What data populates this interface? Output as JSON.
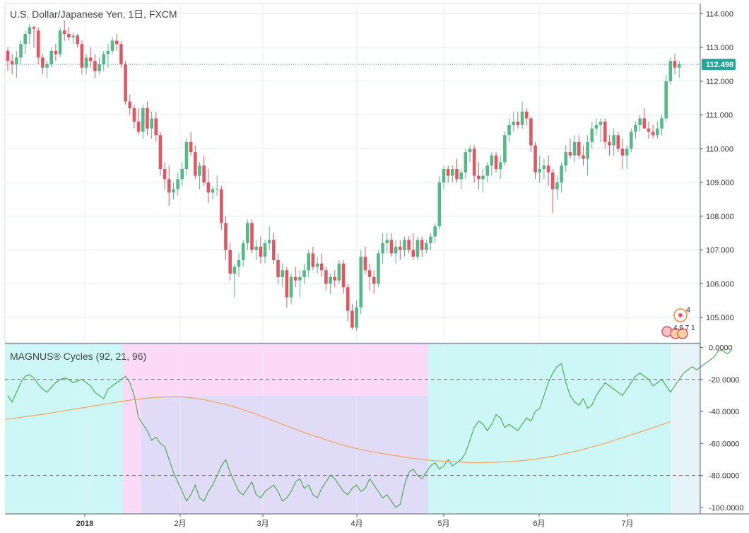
{
  "colors": {
    "up": "#26a69a",
    "up_fill": "#53b987",
    "down": "#e25563",
    "grid": "#e8ecef",
    "border": "#55606a",
    "last_price": "#26a69a",
    "cycle_line": "#4caf50",
    "smooth_line": "#f4a460",
    "zone_cyan": "#cdf7f7",
    "zone_pink": "#fbd9f7",
    "zone_lavender": "#e0dbf6",
    "zone_future": "#e6f3f9"
  },
  "chart_data": [
    {
      "type": "candlestick",
      "title": "U.S. Dollar/Japanese Yen, 1日, FXCM",
      "ylim": [
        104.25,
        114.3
      ],
      "yticks": [
        "114.000",
        "113.000",
        "112.000",
        "111.000",
        "110.000",
        "109.000",
        "108.000",
        "107.000",
        "106.000",
        "105.000"
      ],
      "last_price": 112.498,
      "last_price_label": "112.498",
      "x_labels": [
        "2018",
        "2月",
        "3月",
        "4月",
        "5月",
        "6月",
        "7月"
      ],
      "candles": [
        [
          112.9,
          113.0,
          112.3,
          112.6
        ],
        [
          112.6,
          112.8,
          112.2,
          112.5
        ],
        [
          112.5,
          112.9,
          112.1,
          112.7
        ],
        [
          112.7,
          113.2,
          112.5,
          113.1
        ],
        [
          113.1,
          113.5,
          112.8,
          113.4
        ],
        [
          113.4,
          113.7,
          113.1,
          113.6
        ],
        [
          113.6,
          113.65,
          113.0,
          113.55
        ],
        [
          113.5,
          113.6,
          112.5,
          112.7
        ],
        [
          112.7,
          112.8,
          112.2,
          112.4
        ],
        [
          112.4,
          112.6,
          112.1,
          112.5
        ],
        [
          112.5,
          113.0,
          112.4,
          112.9
        ],
        [
          112.9,
          113.1,
          112.6,
          112.8
        ],
        [
          112.8,
          113.6,
          112.7,
          113.5
        ],
        [
          113.5,
          113.8,
          113.2,
          113.4
        ],
        [
          113.4,
          113.6,
          113.2,
          113.3
        ],
        [
          113.3,
          113.45,
          113.1,
          113.35
        ],
        [
          113.35,
          113.4,
          113.0,
          113.1
        ],
        [
          113.1,
          113.2,
          112.2,
          112.4
        ],
        [
          112.4,
          112.8,
          112.2,
          112.7
        ],
        [
          112.7,
          113.0,
          112.4,
          112.6
        ],
        [
          112.6,
          112.8,
          112.1,
          112.3
        ],
        [
          112.3,
          112.7,
          112.2,
          112.5
        ],
        [
          112.5,
          112.9,
          112.3,
          112.8
        ],
        [
          112.8,
          113.1,
          112.4,
          112.9
        ],
        [
          112.9,
          113.3,
          112.8,
          113.2
        ],
        [
          113.2,
          113.4,
          112.9,
          113.1
        ],
        [
          113.1,
          113.2,
          112.4,
          112.5
        ],
        [
          112.5,
          112.6,
          111.3,
          111.4
        ],
        [
          111.4,
          111.6,
          111.0,
          111.2
        ],
        [
          111.2,
          111.3,
          110.6,
          110.8
        ],
        [
          110.8,
          111.2,
          110.4,
          110.5
        ],
        [
          110.5,
          111.3,
          110.3,
          111.2
        ],
        [
          111.2,
          111.4,
          110.4,
          110.6
        ],
        [
          110.6,
          111.1,
          110.3,
          110.9
        ],
        [
          110.9,
          111.1,
          110.2,
          110.4
        ],
        [
          110.4,
          110.5,
          109.2,
          109.4
        ],
        [
          109.4,
          109.6,
          108.8,
          109.1
        ],
        [
          109.1,
          109.5,
          108.3,
          108.7
        ],
        [
          108.7,
          109.0,
          108.5,
          108.8
        ],
        [
          108.8,
          109.3,
          108.6,
          109.1
        ],
        [
          109.1,
          109.6,
          108.9,
          109.4
        ],
        [
          109.4,
          110.3,
          109.2,
          110.2
        ],
        [
          110.2,
          110.5,
          109.8,
          109.9
        ],
        [
          109.9,
          110.1,
          109.1,
          109.2
        ],
        [
          109.2,
          109.6,
          108.8,
          109.5
        ],
        [
          109.5,
          109.8,
          108.9,
          109.0
        ],
        [
          109.0,
          109.4,
          108.4,
          108.7
        ],
        [
          108.7,
          108.9,
          108.5,
          108.8
        ],
        [
          108.8,
          109.2,
          108.6,
          108.8
        ],
        [
          108.8,
          108.9,
          107.6,
          107.8
        ],
        [
          107.8,
          108.0,
          106.7,
          107.0
        ],
        [
          107.0,
          107.2,
          106.1,
          106.3
        ],
        [
          106.3,
          106.6,
          105.6,
          106.5
        ],
        [
          106.5,
          106.9,
          106.2,
          106.7
        ],
        [
          106.7,
          107.3,
          106.5,
          107.2
        ],
        [
          107.2,
          107.9,
          107.0,
          107.8
        ],
        [
          107.8,
          107.9,
          106.9,
          107.0
        ],
        [
          107.0,
          107.3,
          106.7,
          107.1
        ],
        [
          107.1,
          107.4,
          106.6,
          106.8
        ],
        [
          106.8,
          107.3,
          106.6,
          107.2
        ],
        [
          107.2,
          107.7,
          107.0,
          107.3
        ],
        [
          107.3,
          107.5,
          106.6,
          106.7
        ],
        [
          106.7,
          106.9,
          106.0,
          106.2
        ],
        [
          106.2,
          106.6,
          105.9,
          106.4
        ],
        [
          106.4,
          106.5,
          105.3,
          105.6
        ],
        [
          105.6,
          106.3,
          105.4,
          106.2
        ],
        [
          106.2,
          106.5,
          105.9,
          106.1
        ],
        [
          106.1,
          106.4,
          105.6,
          106.2
        ],
        [
          106.2,
          106.6,
          106.0,
          106.4
        ],
        [
          106.4,
          107.0,
          106.2,
          106.9
        ],
        [
          106.9,
          107.1,
          106.4,
          106.5
        ],
        [
          106.5,
          106.8,
          106.3,
          106.6
        ],
        [
          106.6,
          106.9,
          106.2,
          106.4
        ],
        [
          106.4,
          106.5,
          105.8,
          106.0
        ],
        [
          106.0,
          106.3,
          105.7,
          106.2
        ],
        [
          106.2,
          106.4,
          105.9,
          106.1
        ],
        [
          106.1,
          106.7,
          106.0,
          106.6
        ],
        [
          106.6,
          106.7,
          105.7,
          105.9
        ],
        [
          105.9,
          106.0,
          104.9,
          105.2
        ],
        [
          105.2,
          105.4,
          104.65,
          104.7
        ],
        [
          104.7,
          105.5,
          104.6,
          105.3
        ],
        [
          105.3,
          107.0,
          105.1,
          106.8
        ],
        [
          106.8,
          107.1,
          106.3,
          106.4
        ],
        [
          106.4,
          106.6,
          105.8,
          106.2
        ],
        [
          106.2,
          106.4,
          105.7,
          106.0
        ],
        [
          106.0,
          107.0,
          105.9,
          106.9
        ],
        [
          106.9,
          107.5,
          106.6,
          107.2
        ],
        [
          107.2,
          107.5,
          106.9,
          107.3
        ],
        [
          107.3,
          107.5,
          106.8,
          106.9
        ],
        [
          106.9,
          107.3,
          106.6,
          107.1
        ],
        [
          107.1,
          107.3,
          106.7,
          107.0
        ],
        [
          107.0,
          107.4,
          106.8,
          107.3
        ],
        [
          107.3,
          107.4,
          106.9,
          107.0
        ],
        [
          107.0,
          107.5,
          106.7,
          106.8
        ],
        [
          106.8,
          107.4,
          106.7,
          107.3
        ],
        [
          107.3,
          107.4,
          106.8,
          107.0
        ],
        [
          107.0,
          107.3,
          106.9,
          107.2
        ],
        [
          107.2,
          107.5,
          107.0,
          107.4
        ],
        [
          107.4,
          107.8,
          107.2,
          107.7
        ],
        [
          107.7,
          109.2,
          107.6,
          109.0
        ],
        [
          109.0,
          109.5,
          108.8,
          109.4
        ],
        [
          109.4,
          109.5,
          109.0,
          109.2
        ],
        [
          109.2,
          109.5,
          109.0,
          109.4
        ],
        [
          109.4,
          109.7,
          109.0,
          109.1
        ],
        [
          109.1,
          109.4,
          108.8,
          109.3
        ],
        [
          109.3,
          110.0,
          109.1,
          109.9
        ],
        [
          109.9,
          110.1,
          109.6,
          110.0
        ],
        [
          110.0,
          110.1,
          109.0,
          109.2
        ],
        [
          109.2,
          109.6,
          108.8,
          109.1
        ],
        [
          109.1,
          109.4,
          108.7,
          109.2
        ],
        [
          109.2,
          109.6,
          109.0,
          109.5
        ],
        [
          109.5,
          109.9,
          109.2,
          109.8
        ],
        [
          109.8,
          109.9,
          109.3,
          109.4
        ],
        [
          109.4,
          109.8,
          109.1,
          109.6
        ],
        [
          109.6,
          110.5,
          109.5,
          110.4
        ],
        [
          110.4,
          110.9,
          110.2,
          110.7
        ],
        [
          110.7,
          111.1,
          110.5,
          110.8
        ],
        [
          110.8,
          111.1,
          110.6,
          110.7
        ],
        [
          110.7,
          111.4,
          110.6,
          111.1
        ],
        [
          111.1,
          111.2,
          110.7,
          110.9
        ],
        [
          110.9,
          110.95,
          109.9,
          110.1
        ],
        [
          110.1,
          110.2,
          109.1,
          109.3
        ],
        [
          109.3,
          109.8,
          109.0,
          109.4
        ],
        [
          109.4,
          109.7,
          109.1,
          109.5
        ],
        [
          109.5,
          109.8,
          108.9,
          109.3
        ],
        [
          109.3,
          109.4,
          108.1,
          108.8
        ],
        [
          108.8,
          109.2,
          108.5,
          109.0
        ],
        [
          109.0,
          109.6,
          108.7,
          109.5
        ],
        [
          109.5,
          110.1,
          109.3,
          109.9
        ],
        [
          109.9,
          110.3,
          109.7,
          109.8
        ],
        [
          109.8,
          110.4,
          109.6,
          110.2
        ],
        [
          110.2,
          110.4,
          109.7,
          109.8
        ],
        [
          109.8,
          110.1,
          109.5,
          109.7
        ],
        [
          109.7,
          110.4,
          109.2,
          110.2
        ],
        [
          110.2,
          110.8,
          110.0,
          110.6
        ],
        [
          110.6,
          110.9,
          110.4,
          110.7
        ],
        [
          110.7,
          110.9,
          110.2,
          110.8
        ],
        [
          110.8,
          110.9,
          110.0,
          110.2
        ],
        [
          110.2,
          110.4,
          109.8,
          110.1
        ],
        [
          110.1,
          110.6,
          109.8,
          110.4
        ],
        [
          110.4,
          110.5,
          109.9,
          110.0
        ],
        [
          110.0,
          110.3,
          109.4,
          109.8
        ],
        [
          109.8,
          110.1,
          109.4,
          110.0
        ],
        [
          110.0,
          110.6,
          109.9,
          110.5
        ],
        [
          110.5,
          110.8,
          110.3,
          110.7
        ],
        [
          110.7,
          111.0,
          110.5,
          110.9
        ],
        [
          110.9,
          111.2,
          110.6,
          110.6
        ],
        [
          110.6,
          110.8,
          110.3,
          110.5
        ],
        [
          110.5,
          110.7,
          110.3,
          110.4
        ],
        [
          110.4,
          110.8,
          110.3,
          110.6
        ],
        [
          110.6,
          111.0,
          110.4,
          110.9
        ],
        [
          110.9,
          112.2,
          110.8,
          112.0
        ],
        [
          112.0,
          112.7,
          111.9,
          112.6
        ],
        [
          112.6,
          112.8,
          112.2,
          112.4
        ],
        [
          112.4,
          112.6,
          112.1,
          112.5
        ]
      ]
    },
    {
      "type": "line",
      "title": "MAGNUS® Cycles (92, 21, 96)",
      "ylim": [
        -104,
        2
      ],
      "yticks": [
        "0.0000",
        "-20.0000",
        "-40.0000",
        "-60.0000",
        "-80.0000",
        "-100.0000"
      ],
      "reference_lines": [
        -20,
        -80
      ],
      "cycle_values": [
        -30,
        -34,
        -28,
        -22,
        -18,
        -17,
        -19,
        -23,
        -26,
        -28,
        -25,
        -22,
        -20,
        -19,
        -20,
        -22,
        -21,
        -20,
        -22,
        -24,
        -28,
        -30,
        -32,
        -26,
        -24,
        -22,
        -20,
        -18,
        -22,
        -30,
        -44,
        -48,
        -52,
        -58,
        -56,
        -60,
        -62,
        -70,
        -78,
        -84,
        -90,
        -96,
        -92,
        -86,
        -94,
        -96,
        -90,
        -86,
        -80,
        -74,
        -70,
        -78,
        -84,
        -90,
        -92,
        -88,
        -84,
        -92,
        -94,
        -90,
        -88,
        -86,
        -90,
        -96,
        -94,
        -90,
        -84,
        -82,
        -88,
        -86,
        -92,
        -94,
        -88,
        -84,
        -80,
        -82,
        -86,
        -90,
        -92,
        -88,
        -86,
        -90,
        -88,
        -82,
        -86,
        -90,
        -94,
        -92,
        -96,
        -100,
        -98,
        -86,
        -78,
        -76,
        -80,
        -82,
        -78,
        -74,
        -72,
        -76,
        -74,
        -70,
        -74,
        -72,
        -70,
        -66,
        -58,
        -50,
        -46,
        -48,
        -52,
        -48,
        -42,
        -44,
        -50,
        -48,
        -50,
        -52,
        -48,
        -44,
        -46,
        -40,
        -38,
        -30,
        -22,
        -16,
        -12,
        -10,
        -22,
        -30,
        -34,
        -36,
        -32,
        -38,
        -36,
        -30,
        -26,
        -22,
        -24,
        -26,
        -28,
        -30,
        -26,
        -22,
        -18,
        -16,
        -18,
        -20,
        -24,
        -22,
        -20,
        -24,
        -28,
        -24,
        -20,
        -16,
        -14,
        -12,
        -14,
        -12,
        -10,
        -8,
        -6,
        -2,
        -2,
        -4,
        -2
      ],
      "smooth_values": [
        -45,
        -44.5,
        -44,
        -43.5,
        -43,
        -42.5,
        -42,
        -41.4,
        -40.8,
        -40.2,
        -39.6,
        -39,
        -38.4,
        -37.8,
        -37.2,
        -36.6,
        -36,
        -35.4,
        -34.8,
        -34.2,
        -33.6,
        -33,
        -32.6,
        -32.2,
        -31.8,
        -31.4,
        -31.2,
        -31,
        -30.9,
        -30.8,
        -30.9,
        -31.2,
        -31.6,
        -32.2,
        -32.8,
        -33.6,
        -34.4,
        -35.2,
        -36.2,
        -37.2,
        -38.4,
        -39.6,
        -40.8,
        -42.2,
        -43.6,
        -45,
        -46.4,
        -47.8,
        -49.2,
        -50.6,
        -52,
        -53.4,
        -54.6,
        -55.8,
        -57,
        -58.2,
        -59.4,
        -60.6,
        -61.6,
        -62.6,
        -63.4,
        -64.2,
        -65,
        -65.6,
        -66.2,
        -66.8,
        -67.4,
        -68,
        -68.6,
        -69.2,
        -69.6,
        -70,
        -70.4,
        -70.8,
        -71,
        -71.2,
        -71.4,
        -71.6,
        -71.8,
        -72,
        -72,
        -72,
        -71.9,
        -71.8,
        -71.6,
        -71.4,
        -71.2,
        -71,
        -70.6,
        -70.2,
        -69.8,
        -69.2,
        -68.6,
        -68,
        -67.2,
        -66.4,
        -65.6,
        -64.8,
        -63.8,
        -62.8,
        -61.8,
        -60.8,
        -59.8,
        -58.6,
        -57.4,
        -56.2,
        -55,
        -53.8,
        -52.6,
        -51.4,
        -50.2,
        -49,
        -47.6,
        -46.4
      ]
    }
  ],
  "markers": {
    "dividend": "4",
    "events": "4 6 7 1"
  }
}
